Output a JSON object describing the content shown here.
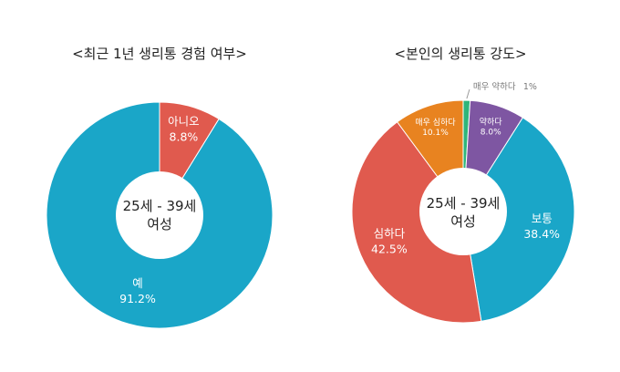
{
  "colors": {
    "red": "#E05A4E",
    "blue": "#1AA6C8",
    "orange": "#E88320",
    "purple": "#7E56A2",
    "green": "#2FB57A",
    "text": "#222222",
    "callout": "#7A7A7A"
  },
  "chart_data": [
    {
      "type": "pie",
      "title": "<최근 1년 생리통 경험 여부>",
      "center_label": [
        "25세 - 39세",
        "여성"
      ],
      "slices": [
        {
          "label": "아니오",
          "value": 8.8,
          "value_label": "8.8%",
          "color": "#E05A4E"
        },
        {
          "label": "예",
          "value": 91.2,
          "value_label": "91.2%",
          "color": "#1AA6C8"
        }
      ]
    },
    {
      "type": "pie",
      "title": "<본인의 생리통 강도>",
      "center_label": [
        "25세 - 39세",
        "여성"
      ],
      "slices": [
        {
          "label": "매우 약하다",
          "value": 1.0,
          "value_label": "1%",
          "color": "#2FB57A"
        },
        {
          "label": "약하다",
          "value": 8.0,
          "value_label": "8.0%",
          "color": "#7E56A2"
        },
        {
          "label": "보통",
          "value": 38.4,
          "value_label": "38.4%",
          "color": "#1AA6C8"
        },
        {
          "label": "심하다",
          "value": 42.5,
          "value_label": "42.5%",
          "color": "#E05A4E"
        },
        {
          "label": "매우 심하다",
          "value": 10.1,
          "value_label": "10.1%",
          "color": "#E88320"
        }
      ]
    }
  ]
}
